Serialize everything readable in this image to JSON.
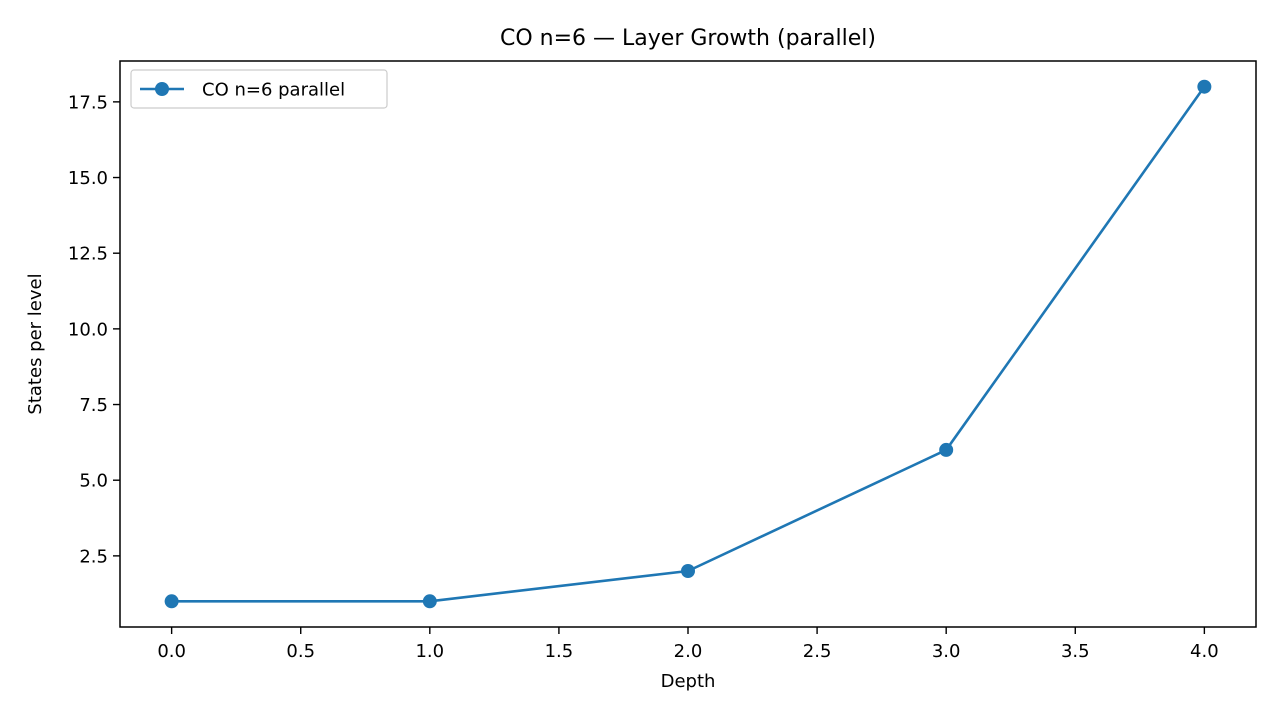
{
  "chart_data": {
    "type": "line",
    "title": "CO n=6 — Layer Growth (parallel)",
    "xlabel": "Depth",
    "ylabel": "States per level",
    "x": [
      0,
      1,
      2,
      3,
      4
    ],
    "series": [
      {
        "name": "CO n=6 parallel",
        "values": [
          1,
          1,
          2,
          6,
          18
        ],
        "color": "#1f77b4",
        "marker": "circle"
      }
    ],
    "xlim": [
      -0.2,
      4.2
    ],
    "ylim": [
      0.15,
      18.85
    ],
    "xticks": [
      0.0,
      0.5,
      1.0,
      1.5,
      2.0,
      2.5,
      3.0,
      3.5,
      4.0
    ],
    "xtick_labels": [
      "0.0",
      "0.5",
      "1.0",
      "1.5",
      "2.0",
      "2.5",
      "3.0",
      "3.5",
      "4.0"
    ],
    "yticks": [
      2.5,
      5.0,
      7.5,
      10.0,
      12.5,
      15.0,
      17.5
    ],
    "ytick_labels": [
      "2.5",
      "5.0",
      "7.5",
      "10.0",
      "12.5",
      "15.0",
      "17.5"
    ],
    "grid": false,
    "legend_position": "top-left"
  }
}
